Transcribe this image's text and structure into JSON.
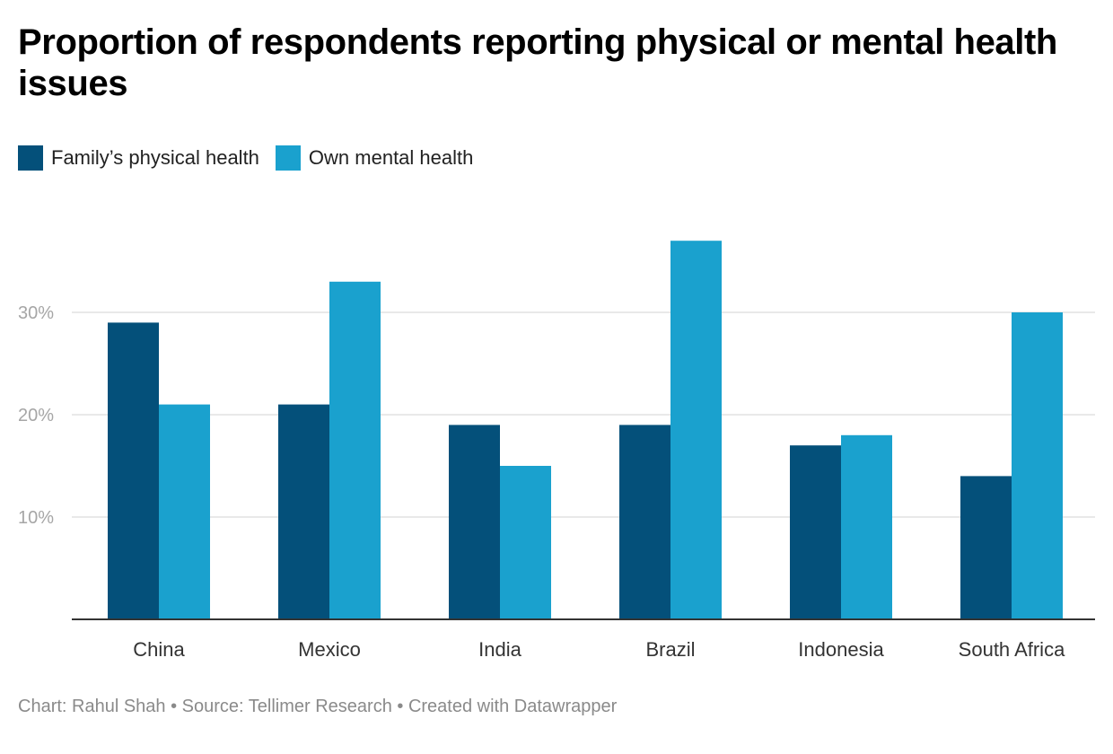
{
  "chart_data": {
    "type": "bar",
    "title": "Proportion of respondents reporting physical or mental health issues",
    "categories": [
      "China",
      "Mexico",
      "India",
      "Brazil",
      "Indonesia",
      "South Africa"
    ],
    "series": [
      {
        "name": "Family’s physical health",
        "color": "#04507a",
        "values": [
          29,
          21,
          19,
          19,
          17,
          14
        ]
      },
      {
        "name": "Own mental health",
        "color": "#1aa1ce",
        "values": [
          21,
          33,
          15,
          37,
          18,
          30
        ]
      }
    ],
    "yticks": [
      {
        "value": 10,
        "label": "10%"
      },
      {
        "value": 20,
        "label": "20%"
      },
      {
        "value": 30,
        "label": "30%"
      }
    ],
    "ylim": [
      0,
      40
    ],
    "grid": true,
    "legend_position": "top-left",
    "xlabel": "",
    "ylabel": ""
  },
  "footer": {
    "credit": "Chart: Rahul Shah • Source: Tellimer Research • Created with Datawrapper"
  }
}
